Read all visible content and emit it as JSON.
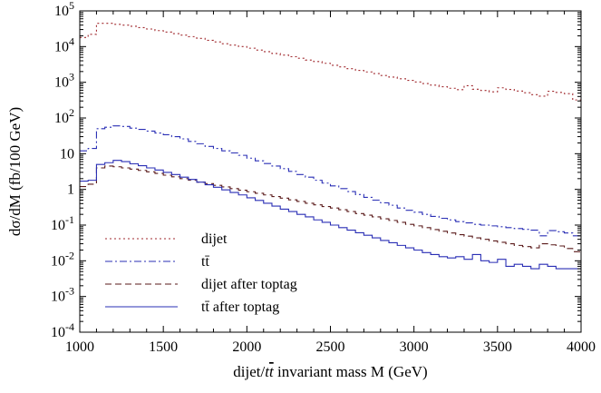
{
  "chart_data": {
    "type": "line",
    "title": "",
    "xlabel": "dijet/tt̄ invariant mass M (GeV)",
    "ylabel": "dσ/dM (fb/100 GeV)",
    "xlim": [
      1000,
      4000
    ],
    "ylim": [
      0.0001,
      100000
    ],
    "yscale": "log",
    "grid": false,
    "legend_position": "lower-left",
    "x_ticks": [
      1000,
      1500,
      2000,
      2500,
      3000,
      3500,
      4000
    ],
    "x_tick_labels": [
      "1000",
      "1500",
      "2000",
      "2500",
      "3000",
      "3500",
      "4000"
    ],
    "y_tick_labels": [
      {
        "value": 100000,
        "base": "10",
        "exp": "5"
      },
      {
        "value": 10000,
        "base": "10",
        "exp": "4"
      },
      {
        "value": 1000,
        "base": "10",
        "exp": "3"
      },
      {
        "value": 100,
        "base": "10",
        "exp": "2"
      },
      {
        "value": 10,
        "base": "10",
        "exp": ""
      },
      {
        "value": 1,
        "base": "1",
        "exp": ""
      },
      {
        "value": 0.1,
        "base": "10",
        "exp": "-1"
      },
      {
        "value": 0.01,
        "base": "10",
        "exp": "-2"
      },
      {
        "value": 0.001,
        "base": "10",
        "exp": "-3"
      },
      {
        "value": 0.0001,
        "base": "10",
        "exp": "-4"
      }
    ],
    "bin_edges": [
      1000,
      1050,
      1100,
      1150,
      1200,
      1250,
      1300,
      1350,
      1400,
      1450,
      1500,
      1550,
      1600,
      1650,
      1700,
      1750,
      1800,
      1850,
      1900,
      1950,
      2000,
      2050,
      2100,
      2150,
      2200,
      2250,
      2300,
      2350,
      2400,
      2450,
      2500,
      2550,
      2600,
      2650,
      2700,
      2750,
      2800,
      2850,
      2900,
      2950,
      3000,
      3050,
      3100,
      3150,
      3200,
      3250,
      3300,
      3350,
      3400,
      3450,
      3500,
      3550,
      3600,
      3650,
      3700,
      3750,
      3800,
      3850,
      3900,
      3950,
      4000
    ],
    "series": [
      {
        "name": "dijet",
        "color": "#a0282d",
        "dash": "2,3",
        "values": [
          18000,
          22000,
          45000,
          45000,
          42000,
          40000,
          37000,
          34000,
          31000,
          28000,
          25500,
          23000,
          21000,
          19000,
          17000,
          15000,
          13500,
          12000,
          11000,
          10000,
          9000,
          8000,
          7200,
          6400,
          5800,
          5200,
          4700,
          4200,
          3800,
          3400,
          3000,
          2700,
          2400,
          2150,
          1950,
          1750,
          1550,
          1400,
          1250,
          1130,
          1020,
          920,
          830,
          750,
          680,
          620,
          800,
          640,
          590,
          540,
          700,
          630,
          570,
          510,
          450,
          410,
          560,
          520,
          480,
          320
        ]
      },
      {
        "name": "tt̄",
        "color": "#2a2fb5",
        "dash": "8,3,2,3",
        "values": [
          12,
          14,
          50,
          55,
          60,
          58,
          52,
          48,
          43,
          38,
          34,
          30,
          26,
          22,
          19,
          16,
          14,
          12,
          10.5,
          9,
          7.5,
          6.3,
          5.3,
          4.5,
          3.8,
          3.2,
          2.6,
          2.2,
          1.8,
          1.5,
          1.25,
          1.05,
          0.87,
          0.72,
          0.6,
          0.5,
          0.42,
          0.36,
          0.3,
          0.26,
          0.23,
          0.2,
          0.175,
          0.155,
          0.14,
          0.125,
          0.115,
          0.105,
          0.1,
          0.095,
          0.09,
          0.085,
          0.08,
          0.076,
          0.072,
          0.05,
          0.07,
          0.065,
          0.06,
          0.05
        ]
      },
      {
        "name": "dijet after toptag",
        "color": "#5a1a1a",
        "dash": "7,4",
        "values": [
          1.2,
          1.4,
          4.0,
          4.5,
          4.3,
          4.0,
          3.7,
          3.4,
          3.1,
          2.8,
          2.5,
          2.25,
          2.0,
          1.8,
          1.6,
          1.45,
          1.3,
          1.17,
          1.05,
          0.95,
          0.86,
          0.78,
          0.7,
          0.63,
          0.57,
          0.51,
          0.46,
          0.41,
          0.37,
          0.33,
          0.3,
          0.27,
          0.24,
          0.21,
          0.19,
          0.17,
          0.15,
          0.135,
          0.12,
          0.105,
          0.095,
          0.085,
          0.075,
          0.067,
          0.06,
          0.054,
          0.049,
          0.044,
          0.04,
          0.036,
          0.033,
          0.03,
          0.027,
          0.025,
          0.023,
          0.03,
          0.028,
          0.026,
          0.022,
          0.018
        ]
      },
      {
        "name": "tt̄ after toptag",
        "color": "#2a2fb5",
        "dash": "",
        "values": [
          1.7,
          1.8,
          5.0,
          5.6,
          6.5,
          6.0,
          5.2,
          4.6,
          4.0,
          3.5,
          3.0,
          2.6,
          2.2,
          1.9,
          1.6,
          1.35,
          1.15,
          0.97,
          0.82,
          0.7,
          0.58,
          0.49,
          0.41,
          0.34,
          0.28,
          0.24,
          0.2,
          0.17,
          0.14,
          0.12,
          0.1,
          0.085,
          0.072,
          0.061,
          0.052,
          0.044,
          0.037,
          0.032,
          0.027,
          0.023,
          0.02,
          0.017,
          0.015,
          0.013,
          0.012,
          0.013,
          0.011,
          0.015,
          0.01,
          0.009,
          0.011,
          0.007,
          0.008,
          0.007,
          0.006,
          0.008,
          0.007,
          0.006,
          0.006,
          0.006
        ]
      }
    ],
    "legend": [
      {
        "label": "dijet"
      },
      {
        "label": "tt̄"
      },
      {
        "label": "dijet after toptag"
      },
      {
        "label": "tt̄ after toptag"
      }
    ]
  }
}
